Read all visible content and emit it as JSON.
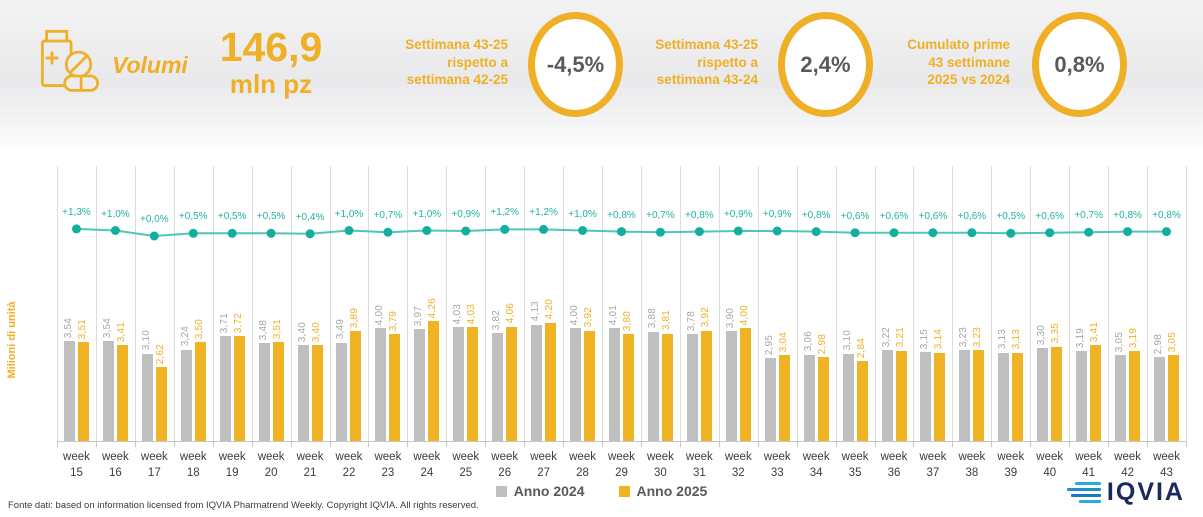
{
  "header": {
    "title": "Volumi",
    "total_value": "146,9",
    "total_unit": "mln pz",
    "kpis": [
      {
        "label": "Settimana 43-25\nrispetto a\nsettimana 42-25",
        "value": "-4,5%"
      },
      {
        "label": "Settimana 43-25\nrispetto a\nsettimana 43-24",
        "value": "2,4%"
      },
      {
        "label": "Cumulato prime\n43 settimane\n2025 vs 2024",
        "value": "0,8%"
      }
    ]
  },
  "chart_data": {
    "type": "bar",
    "categories": [
      "week 15",
      "week 16",
      "week 17",
      "week 18",
      "week 19",
      "week 20",
      "week 21",
      "week 22",
      "week 23",
      "week 24",
      "week 25",
      "week 26",
      "week 27",
      "week 28",
      "week 29",
      "week 30",
      "week 31",
      "week 32",
      "week 33",
      "week 34",
      "week 35",
      "week 36",
      "week 37",
      "week 38",
      "week 39",
      "week 40",
      "week 41",
      "week 42",
      "week 43"
    ],
    "series": [
      {
        "name": "Anno 2024",
        "type": "bar",
        "color": "#BFBFBF",
        "label_color": "#A6A6A6",
        "values": [
          3.54,
          3.54,
          3.1,
          3.24,
          3.71,
          3.48,
          3.4,
          3.49,
          4.0,
          3.97,
          4.03,
          3.82,
          4.13,
          4.0,
          4.01,
          3.88,
          3.78,
          3.9,
          2.95,
          3.06,
          3.1,
          3.22,
          3.15,
          3.23,
          3.13,
          3.3,
          3.19,
          3.05,
          2.98
        ]
      },
      {
        "name": "Anno 2025",
        "type": "bar",
        "color": "#F0B323",
        "label_color": "#EFAF26",
        "values": [
          3.51,
          3.41,
          2.62,
          3.5,
          3.72,
          3.51,
          3.4,
          3.89,
          3.79,
          4.26,
          4.03,
          4.06,
          4.2,
          3.92,
          3.8,
          3.81,
          3.92,
          4.0,
          3.04,
          2.98,
          2.84,
          3.21,
          3.14,
          3.23,
          3.13,
          3.35,
          3.41,
          3.19,
          3.05
        ]
      },
      {
        "name": "var-pct-line",
        "type": "line",
        "color": "#4cc7b8",
        "dot_color": "#12ae9e",
        "values": [
          1.3,
          1.0,
          0.0,
          0.5,
          0.5,
          0.5,
          0.4,
          1.0,
          0.7,
          1.0,
          0.9,
          1.2,
          1.2,
          1.0,
          0.8,
          0.7,
          0.8,
          0.9,
          0.9,
          0.8,
          0.6,
          0.6,
          0.6,
          0.6,
          0.5,
          0.6,
          0.7,
          0.8,
          0.8
        ],
        "labels": [
          "+1,3%",
          "+1,0%",
          "+0,0%",
          "+0,5%",
          "+0,5%",
          "+0,5%",
          "+0,4%",
          "+1,0%",
          "+0,7%",
          "+1,0%",
          "+0,9%",
          "+1,2%",
          "+1,2%",
          "+1,0%",
          "+0,8%",
          "+0,7%",
          "+0,8%",
          "+0,9%",
          "+0,9%",
          "+0,8%",
          "+0,6%",
          "+0,6%",
          "+0,6%",
          "+0,6%",
          "+0,5%",
          "+0,6%",
          "+0,7%",
          "+0,8%",
          "+0,8%"
        ]
      }
    ],
    "ylabel": "Milioni di unità",
    "xlabel": "",
    "ylim": [
      0,
      4.5
    ],
    "grid": "vertical",
    "legend_position": "bottom"
  },
  "legend": [
    {
      "label": "Anno 2024",
      "color": "#BFBFBF"
    },
    {
      "label": "Anno 2025",
      "color": "#F0B323"
    }
  ],
  "footer": {
    "source": "Fonte dati: based on information licensed from IQVIA Pharmatrend Weekly. Copyright IQVIA. All rights reserved.",
    "logo": "IQVIA"
  },
  "colors": {
    "accent_orange": "#EFAF26",
    "bar_2024": "#BFBFBF",
    "bar_2025": "#F0B323",
    "line_teal": "#1FB3A4",
    "kpi_value_gray": "#58595B"
  }
}
